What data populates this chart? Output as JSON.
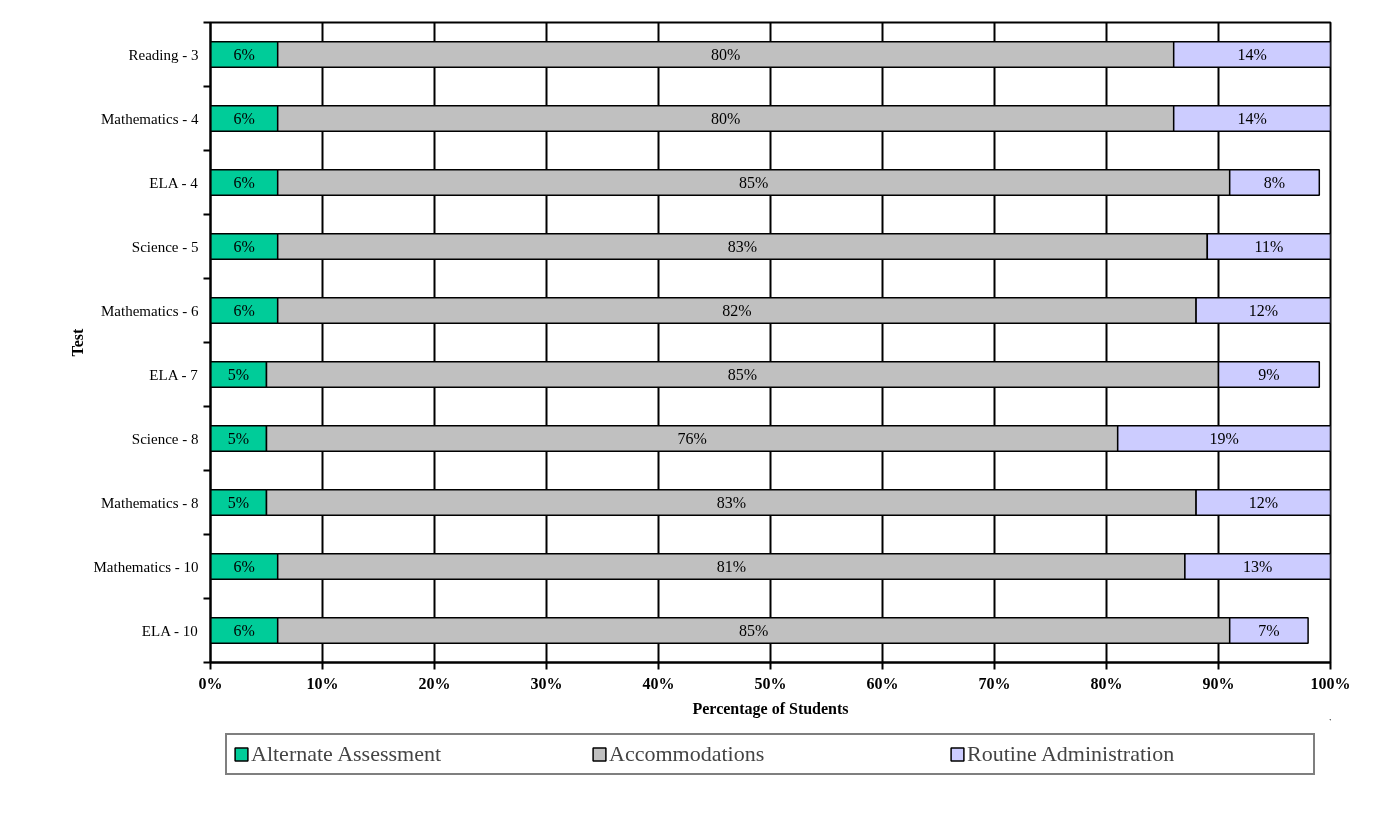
{
  "chart_data": {
    "type": "bar",
    "orientation": "horizontal",
    "stacked": true,
    "xlabel": "Percentage of Students",
    "ylabel": "Test",
    "categories": [
      "Reading - 3",
      "Mathematics - 4",
      "ELA - 4",
      "Science - 5",
      "Mathematics - 6",
      "ELA - 7",
      "Science - 8",
      "Mathematics - 8",
      "Mathematics - 10",
      "ELA - 10"
    ],
    "series": [
      {
        "name": "Alternate Assessment",
        "color": "#00cc99",
        "values": [
          6,
          6,
          6,
          6,
          6,
          5,
          5,
          5,
          6,
          6
        ],
        "value_labels": [
          "6%",
          "6%",
          "6%",
          "6%",
          "6%",
          "5%",
          "5%",
          "5%",
          "6%",
          "6%"
        ]
      },
      {
        "name": "Accommodations",
        "color": "#c0c0c0",
        "values": [
          80,
          80,
          85,
          83,
          82,
          85,
          76,
          83,
          81,
          85
        ],
        "value_labels": [
          "80%",
          "80%",
          "85%",
          "83%",
          "82%",
          "85%",
          "76%",
          "83%",
          "81%",
          "85%"
        ]
      },
      {
        "name": "Routine Administration",
        "color": "#ccccff",
        "values": [
          14,
          14,
          8,
          11,
          12,
          9,
          19,
          12,
          13,
          7
        ],
        "value_labels": [
          "14%",
          "14%",
          "8%",
          "11%",
          "12%",
          "9%",
          "19%",
          "12%",
          "13%",
          "7%"
        ]
      }
    ],
    "xlim": [
      0,
      100
    ],
    "xticks": [
      {
        "value": 0,
        "label": "0%"
      },
      {
        "value": 10,
        "label": "10%"
      },
      {
        "value": 20,
        "label": "20%"
      },
      {
        "value": 30,
        "label": "30%"
      },
      {
        "value": 40,
        "label": "40%"
      },
      {
        "value": 50,
        "label": "50%"
      },
      {
        "value": 60,
        "label": "60%"
      },
      {
        "value": 70,
        "label": "70%"
      },
      {
        "value": 80,
        "label": "80%"
      },
      {
        "value": 90,
        "label": "90%"
      },
      {
        "value": 100,
        "label": "100%"
      }
    ],
    "grid": "x",
    "legend": "bottom"
  }
}
